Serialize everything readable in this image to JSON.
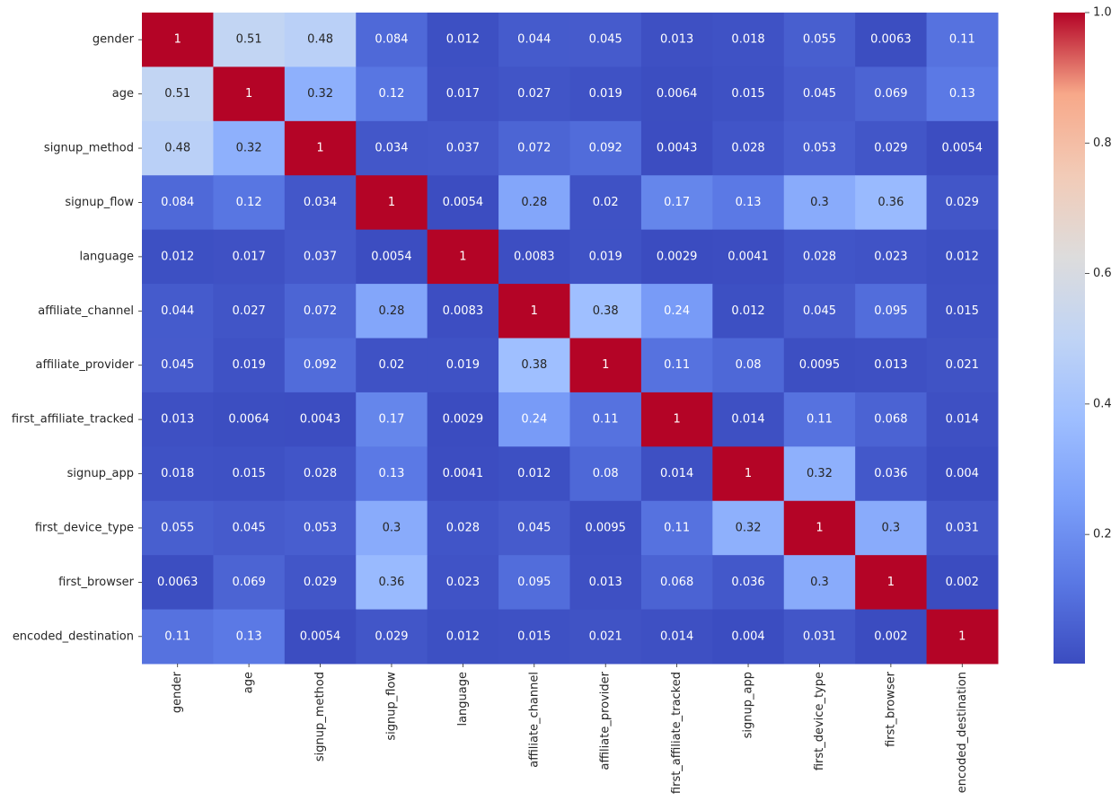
{
  "chart_data": {
    "type": "heatmap",
    "colormap": "coolwarm",
    "labels": [
      "gender",
      "age",
      "signup_method",
      "signup_flow",
      "language",
      "affiliate_channel",
      "affiliate_provider",
      "first_affiliate_tracked",
      "signup_app",
      "first_device_type",
      "first_browser",
      "encoded_destination"
    ],
    "matrix": [
      [
        1,
        0.51,
        0.48,
        0.084,
        0.012,
        0.044,
        0.045,
        0.013,
        0.018,
        0.055,
        0.0063,
        0.11
      ],
      [
        0.51,
        1,
        0.32,
        0.12,
        0.017,
        0.027,
        0.019,
        0.0064,
        0.015,
        0.045,
        0.069,
        0.13
      ],
      [
        0.48,
        0.32,
        1,
        0.034,
        0.037,
        0.072,
        0.092,
        0.0043,
        0.028,
        0.053,
        0.029,
        0.0054
      ],
      [
        0.084,
        0.12,
        0.034,
        1,
        0.0054,
        0.28,
        0.02,
        0.17,
        0.13,
        0.3,
        0.36,
        0.029
      ],
      [
        0.012,
        0.017,
        0.037,
        0.0054,
        1,
        0.0083,
        0.019,
        0.0029,
        0.0041,
        0.028,
        0.023,
        0.012
      ],
      [
        0.044,
        0.027,
        0.072,
        0.28,
        0.0083,
        1,
        0.38,
        0.24,
        0.012,
        0.045,
        0.095,
        0.015
      ],
      [
        0.045,
        0.019,
        0.092,
        0.02,
        0.019,
        0.38,
        1,
        0.11,
        0.08,
        0.0095,
        0.013,
        0.021
      ],
      [
        0.013,
        0.0064,
        0.0043,
        0.17,
        0.0029,
        0.24,
        0.11,
        1,
        0.014,
        0.11,
        0.068,
        0.014
      ],
      [
        0.018,
        0.015,
        0.028,
        0.13,
        0.0041,
        0.012,
        0.08,
        0.014,
        1,
        0.32,
        0.036,
        0.004
      ],
      [
        0.055,
        0.045,
        0.053,
        0.3,
        0.028,
        0.045,
        0.0095,
        0.11,
        0.32,
        1,
        0.3,
        0.031
      ],
      [
        0.0063,
        0.069,
        0.029,
        0.36,
        0.023,
        0.095,
        0.013,
        0.068,
        0.036,
        0.3,
        1,
        0.002
      ],
      [
        0.11,
        0.13,
        0.0054,
        0.029,
        0.012,
        0.015,
        0.021,
        0.014,
        0.004,
        0.031,
        0.002,
        1
      ]
    ],
    "value_range": [
      0.002,
      1.0
    ],
    "colorbar": {
      "ticks": [
        "0.2",
        "0.4",
        "0.6",
        "0.8",
        "1.0"
      ],
      "tick_values": [
        0.2,
        0.4,
        0.6,
        0.8,
        1.0
      ]
    },
    "title": "",
    "xlabel": "",
    "ylabel": ""
  }
}
